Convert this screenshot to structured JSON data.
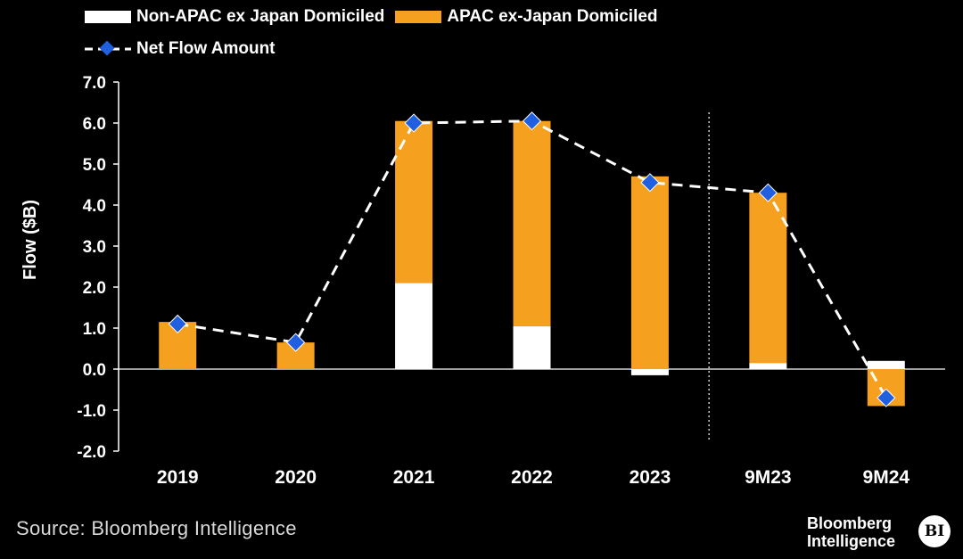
{
  "chart_data": {
    "type": "bar",
    "stacked": true,
    "categories": [
      "2019",
      "2020",
      "2021",
      "2022",
      "2023",
      "9M23",
      "9M24"
    ],
    "series": [
      {
        "name": "Non-APAC ex Japan Domiciled",
        "kind": "bar",
        "color": "#ffffff",
        "values": [
          0.0,
          0.0,
          2.1,
          1.05,
          -0.15,
          0.15,
          0.2
        ]
      },
      {
        "name": "APAC ex-Japan Domiciled",
        "kind": "bar",
        "color": "#f5a01f",
        "values": [
          1.15,
          0.65,
          3.95,
          5.0,
          4.7,
          4.15,
          -0.9
        ]
      },
      {
        "name": "Net Flow Amount",
        "kind": "line",
        "color": "#ffffff",
        "marker_color": "#1f5fe0",
        "values": [
          1.1,
          0.65,
          6.0,
          6.05,
          4.55,
          4.3,
          -0.7
        ]
      }
    ],
    "ylabel": "Flow ($B)",
    "ylim": [
      -2.0,
      7.0
    ],
    "yticks": [
      "7.0",
      "6.0",
      "5.0",
      "4.0",
      "3.0",
      "2.0",
      "1.0",
      "0.0",
      "-1.0",
      "-2.0"
    ],
    "legend_position": "top-left",
    "grid": false,
    "divider_after_category": "2023"
  },
  "legend": {
    "item1": "Non-APAC ex Japan Domiciled",
    "item2": "APAC ex-Japan Domiciled",
    "item3": "Net Flow Amount"
  },
  "footer": {
    "source": "Source: Bloomberg Intelligence",
    "brand_line1": "Bloomberg",
    "brand_line2": "Intelligence",
    "badge": "BI"
  }
}
